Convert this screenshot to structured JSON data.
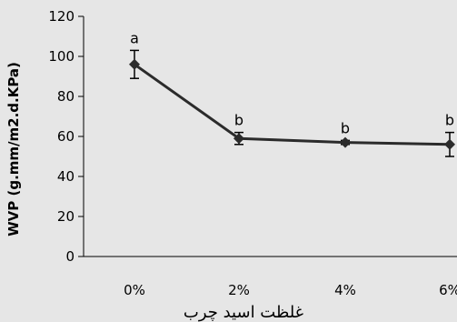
{
  "chart_data": {
    "type": "line",
    "title": "",
    "xlabel": "غلظت اسید چرب",
    "ylabel": "WVP (g.mm/m2.d.KPa)",
    "ylim": [
      0,
      120
    ],
    "yticks": [
      "0",
      "20",
      "40",
      "60",
      "80",
      "100",
      "120"
    ],
    "categories": [
      "0%",
      "2%",
      "4%",
      "6%"
    ],
    "series": [
      {
        "values": [
          96,
          59,
          57,
          56
        ],
        "error": [
          7,
          3,
          1,
          6
        ],
        "significance": [
          "a",
          "b",
          "b",
          "b"
        ]
      }
    ],
    "grid": false,
    "legend": "none",
    "colors": {
      "line": "#2b2b2b",
      "background": "#e6e6e6",
      "axis": "#000000"
    }
  }
}
